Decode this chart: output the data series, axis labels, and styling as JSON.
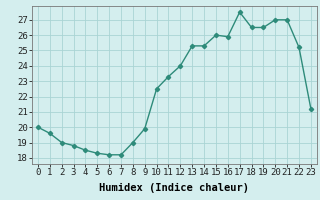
{
  "x": [
    0,
    1,
    2,
    3,
    4,
    5,
    6,
    7,
    8,
    9,
    10,
    11,
    12,
    13,
    14,
    15,
    16,
    17,
    18,
    19,
    20,
    21,
    22,
    23
  ],
  "y": [
    20.0,
    19.6,
    19.0,
    18.8,
    18.5,
    18.3,
    18.2,
    18.2,
    19.0,
    19.9,
    22.5,
    23.3,
    24.0,
    25.3,
    25.3,
    26.0,
    25.9,
    27.5,
    26.5,
    26.5,
    27.0,
    27.0,
    25.2,
    21.2
  ],
  "line_color": "#2e8b7a",
  "bg_color": "#d4eeee",
  "grid_color": "#aad4d4",
  "xlabel": "Humidex (Indice chaleur)",
  "ylabel_ticks": [
    18,
    19,
    20,
    21,
    22,
    23,
    24,
    25,
    26,
    27
  ],
  "ylim": [
    17.6,
    27.9
  ],
  "xlim": [
    -0.5,
    23.5
  ],
  "xtick_labels": [
    "0",
    "1",
    "2",
    "3",
    "4",
    "5",
    "6",
    "7",
    "8",
    "9",
    "10",
    "11",
    "12",
    "13",
    "14",
    "15",
    "16",
    "17",
    "18",
    "19",
    "20",
    "21",
    "22",
    "23"
  ],
  "marker": "D",
  "marker_size": 2.2,
  "line_width": 1.0,
  "xlabel_fontsize": 7.5,
  "tick_fontsize": 6.5
}
